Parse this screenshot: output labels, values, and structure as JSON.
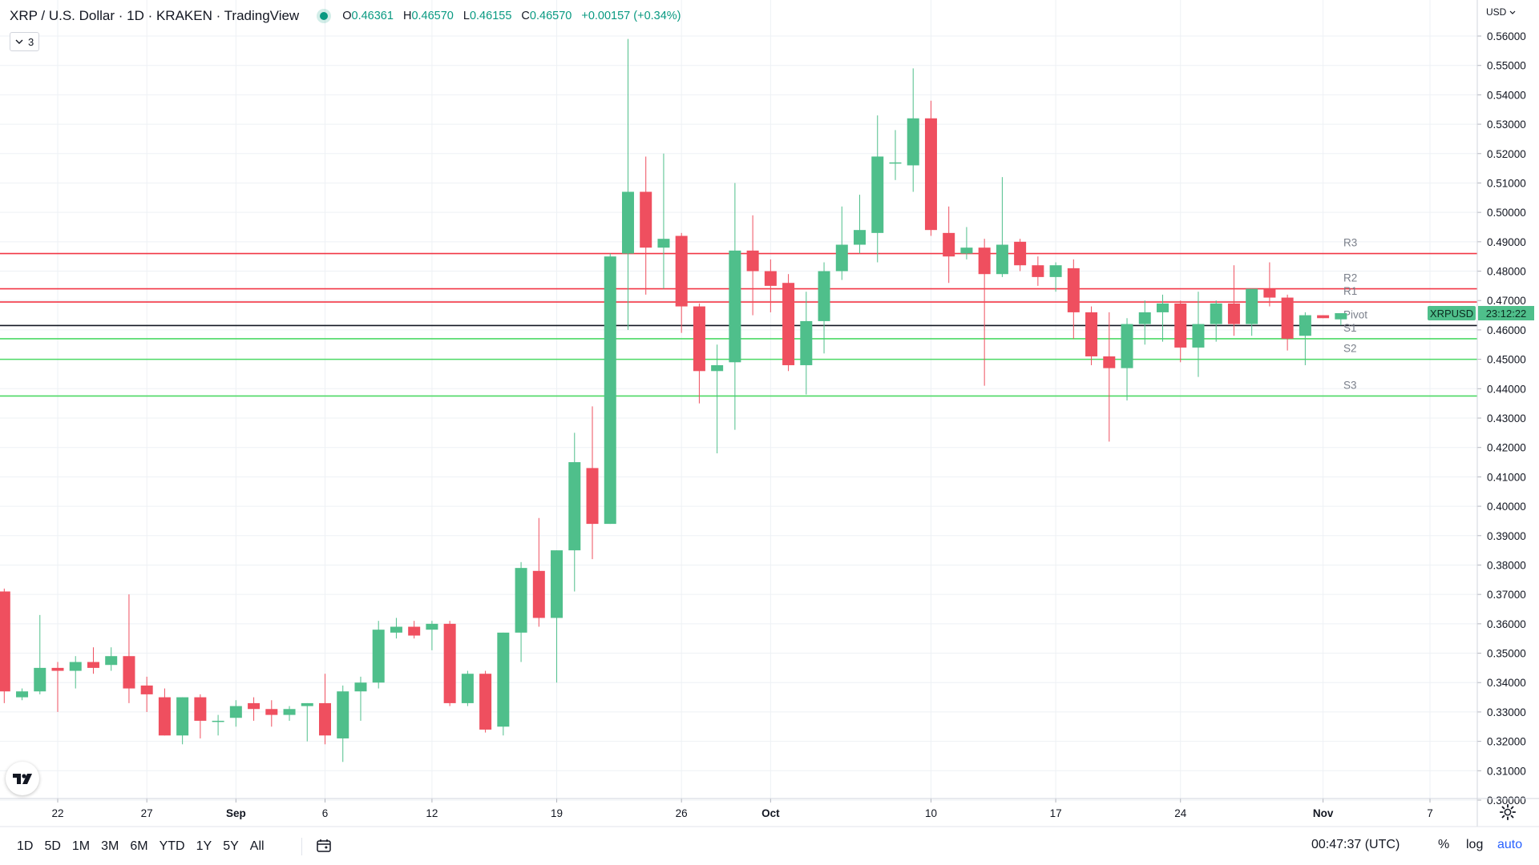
{
  "header": {
    "symbol_line": "XRP / U.S. Dollar · 1D · KRAKEN · TradingView",
    "ohlc": {
      "o_label": "O",
      "o": "0.46361",
      "h_label": "H",
      "h": "0.46570",
      "l_label": "L",
      "l": "0.46155",
      "c_label": "C",
      "c": "0.46570",
      "change": "+0.00157 (+0.34%)"
    },
    "indicator_count": "3"
  },
  "price_axis": {
    "currency": "USD"
  },
  "bottom_bar": {
    "ranges": [
      "1D",
      "5D",
      "1M",
      "3M",
      "6M",
      "YTD",
      "1Y",
      "5Y",
      "All"
    ],
    "clock": "00:47:37 (UTC)",
    "percent_label": "%",
    "log_label": "log",
    "auto_label": "auto"
  },
  "colors": {
    "up": "#4fbf8b",
    "down": "#ef4f5f",
    "resistance": "#f23645",
    "support": "#4cd964",
    "pivot": "#131722",
    "grid": "#eef1f5"
  },
  "icons": [
    "tradingview-logo-icon",
    "calendar-icon",
    "gear-icon",
    "chevron-down-icon"
  ],
  "chart_data": {
    "type": "candlestick",
    "title": "XRP / U.S. Dollar · 1D · KRAKEN · TradingView",
    "ylim": [
      0.3,
      0.565
    ],
    "y_ticks": [
      "0.56000",
      "0.55000",
      "0.54000",
      "0.53000",
      "0.52000",
      "0.51000",
      "0.50000",
      "0.49000",
      "0.48000",
      "0.47000",
      "0.46000",
      "0.45000",
      "0.44000",
      "0.43000",
      "0.42000",
      "0.41000",
      "0.40000",
      "0.39000",
      "0.38000",
      "0.37000",
      "0.36000",
      "0.35000",
      "0.34000",
      "0.33000",
      "0.32000",
      "0.31000",
      "0.30000"
    ],
    "x_ticks": [
      {
        "label": "22",
        "day": 22
      },
      {
        "label": "27",
        "day": 27
      },
      {
        "label": "Sep",
        "day": 32
      },
      {
        "label": "6",
        "day": 37
      },
      {
        "label": "12",
        "day": 43
      },
      {
        "label": "19",
        "day": 50
      },
      {
        "label": "26",
        "day": 57
      },
      {
        "label": "Oct",
        "day": 62
      },
      {
        "label": "10",
        "day": 71
      },
      {
        "label": "17",
        "day": 78
      },
      {
        "label": "24",
        "day": 85
      },
      {
        "label": "Nov",
        "day": 93
      },
      {
        "label": "7",
        "day": 99
      }
    ],
    "x_unit": "day offset from Aug 1, 2021",
    "candles": [
      {
        "day": 19,
        "o": 0.371,
        "h": 0.372,
        "l": 0.333,
        "c": 0.337
      },
      {
        "day": 20,
        "o": 0.335,
        "h": 0.338,
        "l": 0.334,
        "c": 0.337
      },
      {
        "day": 21,
        "o": 0.337,
        "h": 0.363,
        "l": 0.336,
        "c": 0.345
      },
      {
        "day": 22,
        "o": 0.345,
        "h": 0.347,
        "l": 0.33,
        "c": 0.344
      },
      {
        "day": 23,
        "o": 0.344,
        "h": 0.349,
        "l": 0.338,
        "c": 0.347
      },
      {
        "day": 24,
        "o": 0.347,
        "h": 0.352,
        "l": 0.343,
        "c": 0.345
      },
      {
        "day": 25,
        "o": 0.346,
        "h": 0.352,
        "l": 0.344,
        "c": 0.349
      },
      {
        "day": 26,
        "o": 0.349,
        "h": 0.37,
        "l": 0.333,
        "c": 0.338
      },
      {
        "day": 27,
        "o": 0.339,
        "h": 0.342,
        "l": 0.33,
        "c": 0.336
      },
      {
        "day": 28,
        "o": 0.335,
        "h": 0.338,
        "l": 0.322,
        "c": 0.322
      },
      {
        "day": 29,
        "o": 0.322,
        "h": 0.335,
        "l": 0.319,
        "c": 0.335
      },
      {
        "day": 30,
        "o": 0.335,
        "h": 0.336,
        "l": 0.321,
        "c": 0.327
      },
      {
        "day": 31,
        "o": 0.327,
        "h": 0.329,
        "l": 0.322,
        "c": 0.327
      },
      {
        "day": 32,
        "o": 0.328,
        "h": 0.334,
        "l": 0.325,
        "c": 0.332
      },
      {
        "day": 33,
        "o": 0.333,
        "h": 0.335,
        "l": 0.327,
        "c": 0.331
      },
      {
        "day": 34,
        "o": 0.331,
        "h": 0.334,
        "l": 0.325,
        "c": 0.329
      },
      {
        "day": 35,
        "o": 0.329,
        "h": 0.332,
        "l": 0.327,
        "c": 0.331
      },
      {
        "day": 36,
        "o": 0.332,
        "h": 0.333,
        "l": 0.32,
        "c": 0.333
      },
      {
        "day": 37,
        "o": 0.333,
        "h": 0.343,
        "l": 0.319,
        "c": 0.322
      },
      {
        "day": 38,
        "o": 0.321,
        "h": 0.339,
        "l": 0.313,
        "c": 0.337
      },
      {
        "day": 39,
        "o": 0.337,
        "h": 0.342,
        "l": 0.327,
        "c": 0.34
      },
      {
        "day": 40,
        "o": 0.34,
        "h": 0.361,
        "l": 0.338,
        "c": 0.358
      },
      {
        "day": 41,
        "o": 0.357,
        "h": 0.362,
        "l": 0.355,
        "c": 0.359
      },
      {
        "day": 42,
        "o": 0.359,
        "h": 0.361,
        "l": 0.355,
        "c": 0.356
      },
      {
        "day": 43,
        "o": 0.358,
        "h": 0.361,
        "l": 0.351,
        "c": 0.36
      },
      {
        "day": 44,
        "o": 0.36,
        "h": 0.361,
        "l": 0.332,
        "c": 0.333
      },
      {
        "day": 45,
        "o": 0.333,
        "h": 0.344,
        "l": 0.332,
        "c": 0.343
      },
      {
        "day": 46,
        "o": 0.343,
        "h": 0.344,
        "l": 0.323,
        "c": 0.324
      },
      {
        "day": 47,
        "o": 0.325,
        "h": 0.357,
        "l": 0.322,
        "c": 0.357
      },
      {
        "day": 48,
        "o": 0.357,
        "h": 0.381,
        "l": 0.347,
        "c": 0.379
      },
      {
        "day": 49,
        "o": 0.378,
        "h": 0.396,
        "l": 0.359,
        "c": 0.362
      },
      {
        "day": 50,
        "o": 0.362,
        "h": 0.385,
        "l": 0.34,
        "c": 0.385
      },
      {
        "day": 51,
        "o": 0.385,
        "h": 0.425,
        "l": 0.371,
        "c": 0.415
      },
      {
        "day": 52,
        "o": 0.413,
        "h": 0.434,
        "l": 0.382,
        "c": 0.394
      },
      {
        "day": 53,
        "o": 0.394,
        "h": 0.486,
        "l": 0.394,
        "c": 0.485
      },
      {
        "day": 54,
        "o": 0.486,
        "h": 0.559,
        "l": 0.46,
        "c": 0.507
      },
      {
        "day": 55,
        "o": 0.507,
        "h": 0.519,
        "l": 0.472,
        "c": 0.488
      },
      {
        "day": 56,
        "o": 0.488,
        "h": 0.52,
        "l": 0.474,
        "c": 0.491
      },
      {
        "day": 57,
        "o": 0.492,
        "h": 0.493,
        "l": 0.459,
        "c": 0.468
      },
      {
        "day": 58,
        "o": 0.468,
        "h": 0.469,
        "l": 0.435,
        "c": 0.446
      },
      {
        "day": 59,
        "o": 0.446,
        "h": 0.455,
        "l": 0.418,
        "c": 0.448
      },
      {
        "day": 60,
        "o": 0.449,
        "h": 0.51,
        "l": 0.426,
        "c": 0.487
      },
      {
        "day": 61,
        "o": 0.487,
        "h": 0.499,
        "l": 0.465,
        "c": 0.48
      },
      {
        "day": 62,
        "o": 0.48,
        "h": 0.484,
        "l": 0.466,
        "c": 0.475
      },
      {
        "day": 63,
        "o": 0.476,
        "h": 0.479,
        "l": 0.446,
        "c": 0.448
      },
      {
        "day": 64,
        "o": 0.448,
        "h": 0.473,
        "l": 0.438,
        "c": 0.463
      },
      {
        "day": 65,
        "o": 0.463,
        "h": 0.483,
        "l": 0.452,
        "c": 0.48
      },
      {
        "day": 66,
        "o": 0.48,
        "h": 0.502,
        "l": 0.477,
        "c": 0.489
      },
      {
        "day": 67,
        "o": 0.489,
        "h": 0.506,
        "l": 0.486,
        "c": 0.494
      },
      {
        "day": 68,
        "o": 0.493,
        "h": 0.533,
        "l": 0.483,
        "c": 0.519
      },
      {
        "day": 69,
        "o": 0.517,
        "h": 0.528,
        "l": 0.511,
        "c": 0.517
      },
      {
        "day": 70,
        "o": 0.516,
        "h": 0.549,
        "l": 0.507,
        "c": 0.532
      },
      {
        "day": 71,
        "o": 0.532,
        "h": 0.538,
        "l": 0.492,
        "c": 0.494
      },
      {
        "day": 72,
        "o": 0.493,
        "h": 0.502,
        "l": 0.476,
        "c": 0.485
      },
      {
        "day": 73,
        "o": 0.486,
        "h": 0.495,
        "l": 0.484,
        "c": 0.488
      },
      {
        "day": 74,
        "o": 0.488,
        "h": 0.491,
        "l": 0.441,
        "c": 0.479
      },
      {
        "day": 75,
        "o": 0.479,
        "h": 0.512,
        "l": 0.478,
        "c": 0.489
      },
      {
        "day": 76,
        "o": 0.49,
        "h": 0.491,
        "l": 0.48,
        "c": 0.482
      },
      {
        "day": 77,
        "o": 0.482,
        "h": 0.485,
        "l": 0.475,
        "c": 0.478
      },
      {
        "day": 78,
        "o": 0.478,
        "h": 0.483,
        "l": 0.473,
        "c": 0.482
      },
      {
        "day": 79,
        "o": 0.481,
        "h": 0.484,
        "l": 0.457,
        "c": 0.466
      },
      {
        "day": 80,
        "o": 0.466,
        "h": 0.468,
        "l": 0.448,
        "c": 0.451
      },
      {
        "day": 81,
        "o": 0.451,
        "h": 0.466,
        "l": 0.422,
        "c": 0.447
      },
      {
        "day": 82,
        "o": 0.447,
        "h": 0.464,
        "l": 0.436,
        "c": 0.462
      },
      {
        "day": 83,
        "o": 0.462,
        "h": 0.47,
        "l": 0.455,
        "c": 0.466
      },
      {
        "day": 84,
        "o": 0.466,
        "h": 0.472,
        "l": 0.456,
        "c": 0.469
      },
      {
        "day": 85,
        "o": 0.469,
        "h": 0.47,
        "l": 0.449,
        "c": 0.454
      },
      {
        "day": 86,
        "o": 0.454,
        "h": 0.473,
        "l": 0.444,
        "c": 0.462
      },
      {
        "day": 87,
        "o": 0.462,
        "h": 0.47,
        "l": 0.456,
        "c": 0.469
      },
      {
        "day": 88,
        "o": 0.469,
        "h": 0.482,
        "l": 0.458,
        "c": 0.462
      },
      {
        "day": 89,
        "o": 0.462,
        "h": 0.474,
        "l": 0.458,
        "c": 0.474
      },
      {
        "day": 90,
        "o": 0.474,
        "h": 0.483,
        "l": 0.468,
        "c": 0.471
      },
      {
        "day": 91,
        "o": 0.471,
        "h": 0.472,
        "l": 0.453,
        "c": 0.457
      },
      {
        "day": 92,
        "o": 0.458,
        "h": 0.466,
        "l": 0.448,
        "c": 0.465
      },
      {
        "day": 93,
        "o": 0.465,
        "h": 0.465,
        "l": 0.464,
        "c": 0.464
      },
      {
        "day": 94,
        "o": 0.4636,
        "h": 0.4657,
        "l": 0.4616,
        "c": 0.4657
      }
    ],
    "levels": [
      {
        "label": "R3",
        "value": 0.486,
        "kind": "resistance"
      },
      {
        "label": "R2",
        "value": 0.474,
        "kind": "resistance"
      },
      {
        "label": "R1",
        "value": 0.4695,
        "kind": "resistance"
      },
      {
        "label": "Pivot",
        "value": 0.4615,
        "kind": "pivot"
      },
      {
        "label": "S1",
        "value": 0.457,
        "kind": "support"
      },
      {
        "label": "S2",
        "value": 0.45,
        "kind": "support"
      },
      {
        "label": "S3",
        "value": 0.4375,
        "kind": "support"
      }
    ],
    "last_price": {
      "symbol": "XRPUSD",
      "value": 0.4657,
      "countdown": "23:12:22"
    }
  }
}
